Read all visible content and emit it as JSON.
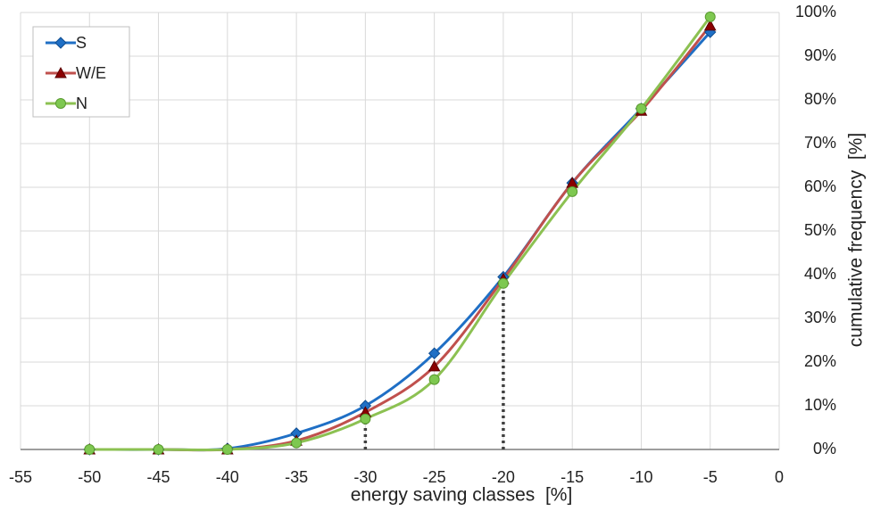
{
  "chart_data": {
    "type": "line",
    "x_label": "energy saving classes  [%]",
    "y_label": "cumulative frequency  [%]",
    "x": [
      -50,
      -45,
      -40,
      -35,
      -30,
      -25,
      -20,
      -15,
      -10,
      -5
    ],
    "series": [
      {
        "name": "S",
        "color": "#1f6fc5",
        "marker": "diamond",
        "marker_color": "#1f6fc5",
        "values": [
          0,
          0,
          0.2,
          3.7,
          10,
          22,
          39.5,
          61,
          78,
          95.5
        ]
      },
      {
        "name": "W/E",
        "color": "#c0504d",
        "marker": "triangle",
        "marker_color": "#8b0000",
        "values": [
          0,
          0,
          0,
          2,
          8.5,
          19,
          39,
          61,
          77.5,
          97
        ]
      },
      {
        "name": "N",
        "color": "#8cc152",
        "marker": "circle",
        "marker_color": "#7ec850",
        "values": [
          0,
          0,
          0,
          1.5,
          7,
          16,
          38,
          59,
          78,
          99
        ]
      }
    ],
    "vlines": [
      {
        "x": -30,
        "y": 10
      },
      {
        "x": -20,
        "y": 39.5
      }
    ],
    "xlim": [
      -55,
      0
    ],
    "xticks": [
      -55,
      -50,
      -45,
      -40,
      -35,
      -30,
      -25,
      -20,
      -15,
      -10,
      -5,
      0
    ],
    "ylim": [
      0,
      100
    ],
    "yticks": [
      {
        "value": 0,
        "label": "0%"
      },
      {
        "value": 10,
        "label": "10%"
      },
      {
        "value": 20,
        "label": "20%"
      },
      {
        "value": 30,
        "label": "30%"
      },
      {
        "value": 40,
        "label": "40%"
      },
      {
        "value": 50,
        "label": "50%"
      },
      {
        "value": 60,
        "label": "60%"
      },
      {
        "value": 70,
        "label": "70%"
      },
      {
        "value": 80,
        "label": "80%"
      },
      {
        "value": 90,
        "label": "90%"
      },
      {
        "value": 100,
        "label": "100%"
      }
    ],
    "grid": true,
    "y_axis_side": "right",
    "legend_position": "top-left"
  }
}
